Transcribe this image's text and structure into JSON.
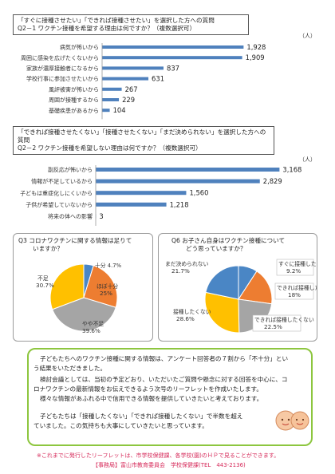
{
  "colors": {
    "bar": "#4f81bd",
    "pie_blue": "#4a86c5",
    "pie_orange": "#ed7d31",
    "pie_gray": "#a5a5a5",
    "pie_yellow": "#ffc000",
    "message_border": "#8dc63f",
    "footer": "#d62a5a"
  },
  "q1": {
    "heading_line1": "「すぐに接種させたい」「できれば接種させたい」を選択した方への質問",
    "heading_line2": "Q2－1  ワクチン接種を希望する理由は何ですか？（複数選択可）",
    "unit": "（人）"
  },
  "q2": {
    "heading_line1": "「できれば接種させたくない」「接種させたくない」「まだ決められない」を選択した方への質問",
    "heading_line2": "Q2－2  ワクチン接種を希望しない理由は何ですか？（複数選択可）",
    "unit": "（人）"
  },
  "q3": {
    "title_line1": "Q3  コロナワクチンに関する情報は足りて",
    "title_line2": "いますか？"
  },
  "q6": {
    "title_line1": "Q6  お子さん自身はワクチン接種について",
    "title_line2": "どう思っていますか？"
  },
  "message": {
    "line1": "子どもたちへのワクチン接種に関する情報は、アンケート回答者の７割から「不十分」とい",
    "line2": "う結果をいただきました。",
    "line3": "検討会議としては、当初の予定どおり、いただいたご質問や懸念に対する回答を中心に、コ",
    "line4": "ロナワクチンの最新情報をお伝えできるよう次号のリーフレットを作成いたします。",
    "line5": "様々な情報があふれる中で信用できる情報を提供していきたいと考えております。",
    "line6": "子どもたちは「接種したくない」「できれば接種したくない」で半数を超え",
    "line7": "ていました。この気持ちも大事にしていきたいと思っています。"
  },
  "footer": {
    "line1": "※これまでに発行したリーフレットは、市学校保健課、各学校(園)のＨＰで見ることができます。",
    "line2": "【事務局】富山市教育委員会　学校保健課(TEL　443-2136)"
  },
  "chart_data": [
    {
      "type": "bar",
      "title": "Q2－1  ワクチン接種を希望する理由は何ですか？（複数選択可）",
      "orientation": "horizontal",
      "categories": [
        "病気が怖いから",
        "周囲に感染を広げたくないから",
        "家族が濃厚接触者になるから",
        "学校行事に参加させたいから",
        "風評被害が怖いから",
        "周囲が接種するから",
        "基礎疾患があるから"
      ],
      "values": [
        1928,
        1909,
        837,
        631,
        267,
        229,
        104
      ],
      "value_labels": [
        "1,928",
        "1,909",
        "837",
        "631",
        "267",
        "229",
        "104"
      ],
      "unit": "（人）",
      "xlim": [
        0,
        2000
      ]
    },
    {
      "type": "bar",
      "title": "Q2－2  ワクチン接種を希望しない理由は何ですか？（複数選択可）",
      "orientation": "horizontal",
      "categories": [
        "副反応が怖いから",
        "情報が不足しているから",
        "子どもは重症化しにくいから",
        "子供が希望していないから",
        "将来の体への影響"
      ],
      "values": [
        3168,
        2829,
        1560,
        1218,
        3
      ],
      "value_labels": [
        "3,168",
        "2,829",
        "1,560",
        "1,218",
        "3"
      ],
      "unit": "（人）",
      "xlim": [
        0,
        3300
      ]
    },
    {
      "type": "pie",
      "title": "Q3  コロナワクチンに関する情報は足りていますか？",
      "slices": [
        {
          "label": "十分",
          "value": 4.7,
          "text": "4.7%",
          "color": "#4a86c5"
        },
        {
          "label": "ほぼ十分",
          "value": 25,
          "text": "25%",
          "color": "#ed7d31"
        },
        {
          "label": "やや不足",
          "value": 39.6,
          "text": "39.6%",
          "color": "#a5a5a5"
        },
        {
          "label": "不足",
          "value": 30.7,
          "text": "30.7%",
          "color": "#ffc000"
        }
      ]
    },
    {
      "type": "pie",
      "title": "Q6  お子さん自身はワクチン接種についてどう思っていますか？",
      "slices": [
        {
          "label": "すぐに接種したい",
          "value": 9.2,
          "text": "9.2%",
          "color": "#4a86c5"
        },
        {
          "label": "できれば接種したい",
          "value": 18,
          "text": "18%",
          "color": "#ed7d31"
        },
        {
          "label": "できれば接種したくない",
          "value": 22.5,
          "text": "22.5%",
          "color": "#a5a5a5"
        },
        {
          "label": "接種したくない",
          "value": 28.6,
          "text": "28.6%",
          "color": "#ffc000"
        },
        {
          "label": "まだ決められない",
          "value": 21.7,
          "text": "21.7%",
          "color": "#4a86c5"
        }
      ]
    }
  ]
}
